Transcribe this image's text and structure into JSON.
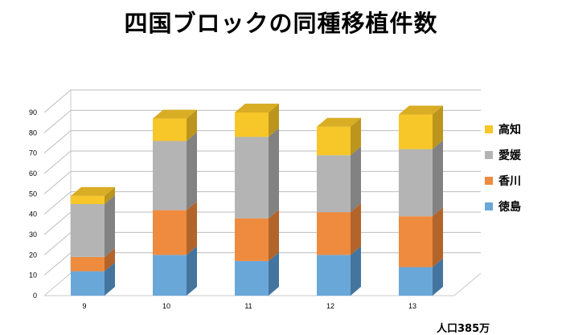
{
  "chart_data": {
    "type": "bar",
    "stacked": true,
    "three_d": true,
    "title": "四国ブロックの同種移植件数",
    "note": "人口385万",
    "categories": [
      "9",
      "10",
      "11",
      "12",
      "13"
    ],
    "series": [
      {
        "name": "徳島",
        "values": [
          12,
          20,
          17,
          20,
          14
        ],
        "color": "#6aa7d9",
        "side": "#44759e",
        "top": "#8fc0e8"
      },
      {
        "name": "香川",
        "values": [
          7,
          22,
          21,
          21,
          25
        ],
        "color": "#ee8b3f",
        "side": "#b3642a",
        "top": "#f4a86c"
      },
      {
        "name": "愛媛",
        "values": [
          26,
          34,
          40,
          28,
          33
        ],
        "color": "#b4b4b4",
        "side": "#828282",
        "top": "#cdcdcd"
      },
      {
        "name": "高知",
        "values": [
          4,
          11,
          12,
          14,
          17
        ],
        "color": "#f7c628",
        "side": "#bb951d",
        "top": "#d9ad24"
      }
    ],
    "ylim": [
      0,
      90
    ],
    "yticks": [
      0,
      10,
      20,
      30,
      40,
      50,
      60,
      70,
      80,
      90
    ],
    "grid": true,
    "legend": "right",
    "xlabel": "",
    "ylabel": ""
  }
}
